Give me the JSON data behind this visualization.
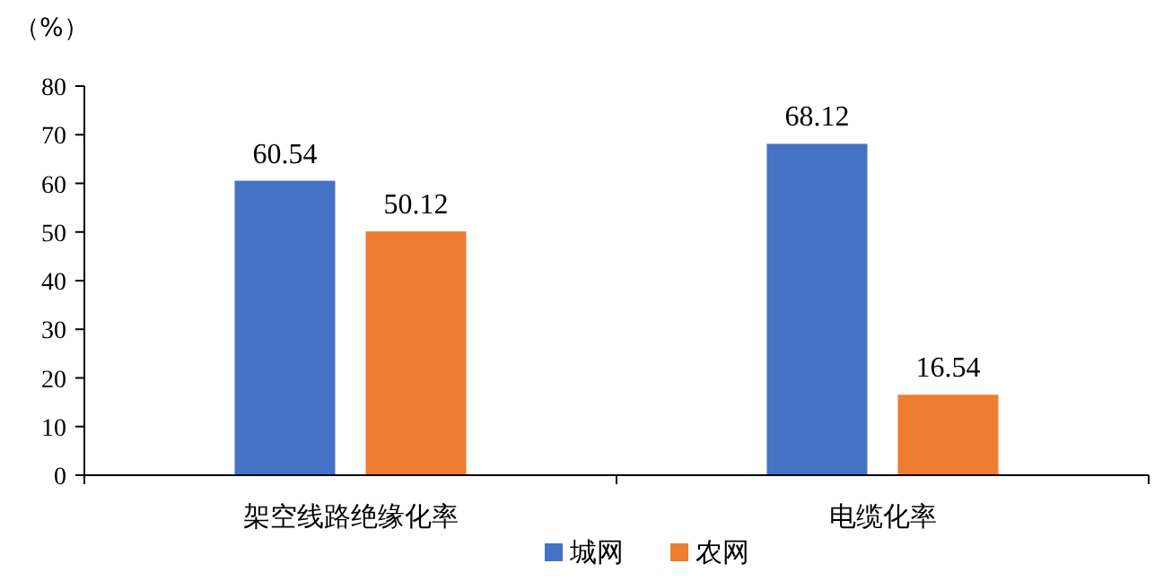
{
  "chart_data": {
    "type": "bar",
    "ylabel": "（%）",
    "categories": [
      "架空线路绝缘化率",
      "电缆化率"
    ],
    "series": [
      {
        "name": "城网",
        "color": "#4472c4",
        "values": [
          60.54,
          68.12
        ]
      },
      {
        "name": "农网",
        "color": "#ed7d31",
        "values": [
          50.12,
          16.54
        ]
      }
    ],
    "ylim": [
      0,
      80
    ],
    "yticks": [
      0,
      10,
      20,
      30,
      40,
      50,
      60,
      70,
      80
    ],
    "data_labels": true,
    "legend": "bottom",
    "grid": false
  }
}
